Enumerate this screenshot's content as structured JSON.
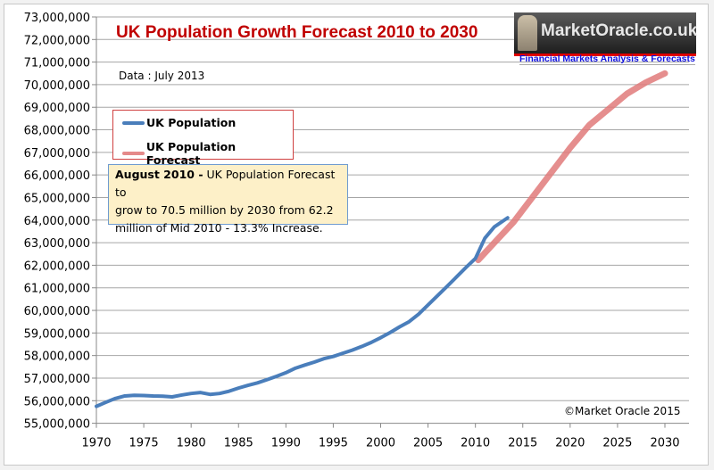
{
  "chart_data": {
    "type": "line",
    "title": "UK Population Growth Forecast 2010 to 2030",
    "subtitle": "Data : July 2013",
    "credit": "©Market Oracle 2015",
    "xlim": [
      1970,
      2030
    ],
    "ylim": [
      55000000,
      73000000
    ],
    "x_ticks": [
      "1970",
      "1975",
      "1980",
      "1985",
      "1990",
      "1995",
      "2000",
      "2005",
      "2010",
      "2015",
      "2020",
      "2025",
      "2030"
    ],
    "y_ticks": [
      "55,000,000",
      "56,000,000",
      "57,000,000",
      "58,000,000",
      "59,000,000",
      "60,000,000",
      "61,000,000",
      "62,000,000",
      "63,000,000",
      "64,000,000",
      "65,000,000",
      "66,000,000",
      "67,000,000",
      "68,000,000",
      "69,000,000",
      "70,000,000",
      "71,000,000",
      "72,000,000",
      "73,000,000"
    ],
    "grid": "horizontal",
    "legend_position": "top-left",
    "series": [
      {
        "name": "UK Population",
        "color": "#4a7ebb",
        "x": [
          1970,
          1971,
          1972,
          1973,
          1974,
          1975,
          1976,
          1977,
          1978,
          1979,
          1980,
          1981,
          1982,
          1983,
          1984,
          1985,
          1986,
          1987,
          1988,
          1989,
          1990,
          1991,
          1992,
          1993,
          1994,
          1995,
          1996,
          1997,
          1998,
          1999,
          2000,
          2001,
          2002,
          2003,
          2004,
          2005,
          2006,
          2007,
          2008,
          2009,
          2010,
          2011,
          2012,
          2013.4
        ],
        "y": [
          55750000,
          55930000,
          56100000,
          56210000,
          56240000,
          56230000,
          56210000,
          56200000,
          56170000,
          56250000,
          56320000,
          56360000,
          56280000,
          56320000,
          56420000,
          56560000,
          56680000,
          56790000,
          56930000,
          57080000,
          57240000,
          57440000,
          57580000,
          57710000,
          57860000,
          57960000,
          58100000,
          58240000,
          58400000,
          58580000,
          58790000,
          59020000,
          59270000,
          59500000,
          59830000,
          60240000,
          60650000,
          61060000,
          61480000,
          61900000,
          62300000,
          63200000,
          63700000,
          64100000
        ]
      },
      {
        "name": "UK Population Forecast",
        "color": "#e07a7a",
        "x": [
          2010.3,
          2012,
          2014,
          2016,
          2018,
          2020,
          2022,
          2024,
          2026,
          2028,
          2030
        ],
        "y": [
          62230000,
          63000000,
          63900000,
          65000000,
          66100000,
          67200000,
          68200000,
          68900000,
          69600000,
          70100000,
          70500000
        ]
      }
    ],
    "annotation": {
      "bold": "August 2010 -",
      "lines": [
        " UK Population Forecast to",
        "grow to 70.5  million by 2030 from 62.2",
        "million of Mid 2010 - 13.3% Increase."
      ]
    }
  },
  "logo": {
    "name": "MarketOracle.co.uk",
    "tagline": "Financial Markets Analysis & Forecasts"
  }
}
